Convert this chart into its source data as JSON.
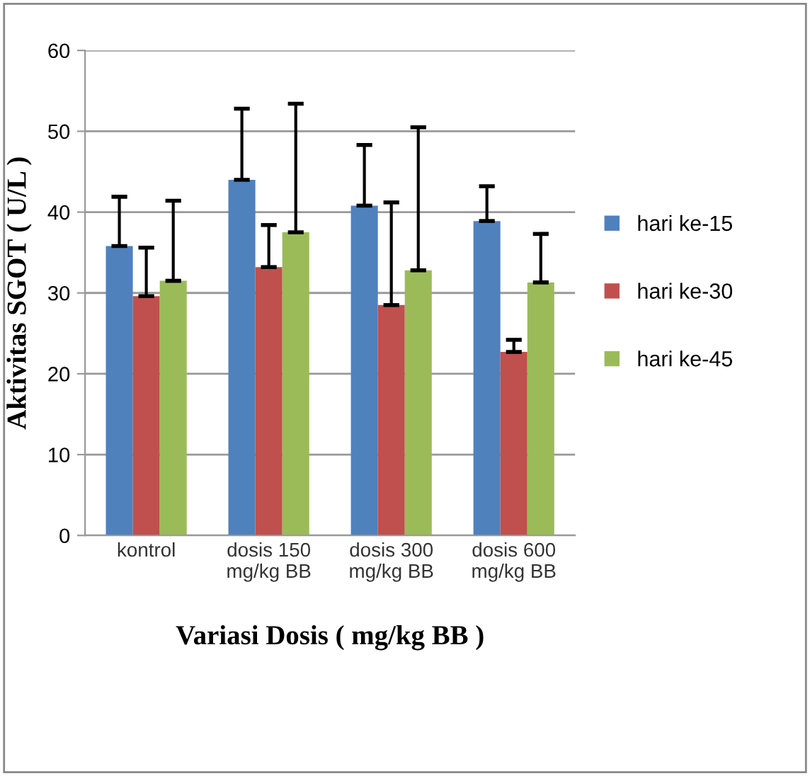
{
  "chart_data": {
    "type": "bar",
    "xlabel": "Variasi Dosis ( mg/kg BB )",
    "ylabel": "Aktivitas SGOT ( U/L )",
    "categories": [
      "kontrol",
      "dosis 150\nmg/kg BB",
      "dosis 300\nmg/kg BB",
      "dosis 600\nmg/kg BB"
    ],
    "series": [
      {
        "name": "hari ke-15",
        "color": "#4f81bd",
        "values": [
          35.8,
          44,
          40.8,
          38.9
        ],
        "errors": [
          [
            35.8,
            41.9
          ],
          [
            44,
            52.8
          ],
          [
            40.8,
            48.3
          ],
          [
            38.9,
            43.2
          ]
        ]
      },
      {
        "name": "hari ke-30",
        "color": "#c0504d",
        "values": [
          29.6,
          33.2,
          28.5,
          22.7
        ],
        "errors": [
          [
            29.6,
            35.6
          ],
          [
            33.2,
            38.4
          ],
          [
            28.5,
            41.2
          ],
          [
            22.7,
            24.2
          ]
        ]
      },
      {
        "name": "hari ke-45",
        "color": "#9bbb59",
        "values": [
          31.5,
          37.5,
          32.8,
          31.3
        ],
        "errors": [
          [
            31.5,
            41.4
          ],
          [
            37.5,
            53.4
          ],
          [
            32.8,
            50.5
          ],
          [
            31.3,
            37.3
          ]
        ]
      }
    ],
    "ylim": [
      0,
      60
    ],
    "yticks": [
      0,
      10,
      20,
      30,
      40,
      50,
      60
    ],
    "grid": "y",
    "legend": "right"
  }
}
